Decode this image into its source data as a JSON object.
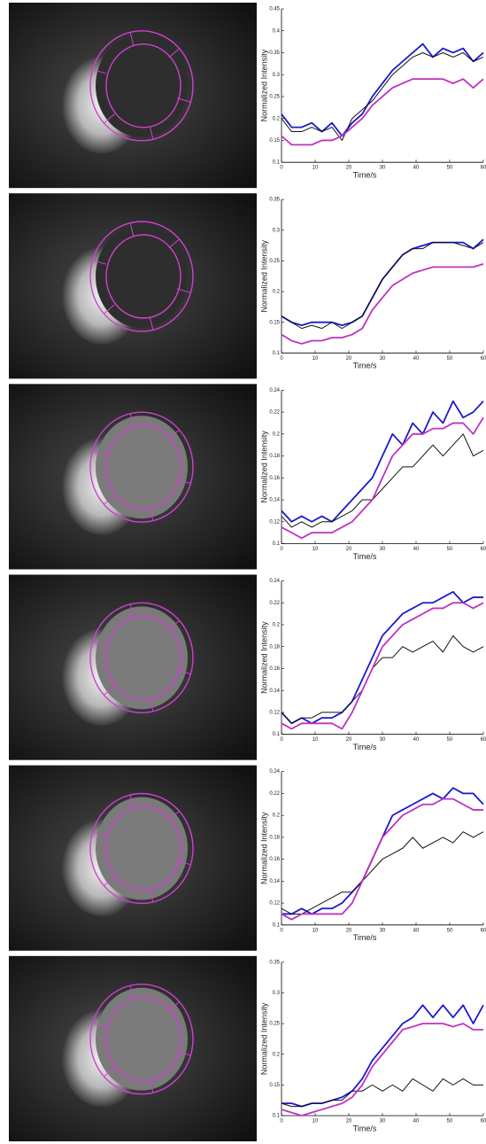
{
  "chart_data": [
    {
      "type": "line",
      "x_label": "Time/s",
      "y_label": "Normalized Intensity",
      "x": [
        0,
        3,
        6,
        9,
        12,
        15,
        18,
        21,
        24,
        27,
        30,
        33,
        36,
        39,
        42,
        45,
        48,
        51,
        54,
        57,
        60
      ],
      "xlim": [
        0,
        60
      ],
      "xticks": [
        0,
        10,
        20,
        30,
        40,
        50,
        60
      ],
      "ylim": [
        0.1,
        0.45
      ],
      "yticks": [
        0.1,
        0.15,
        0.2,
        0.25,
        0.3,
        0.35,
        0.4,
        0.45
      ],
      "series": [
        {
          "color": "#1a1acc",
          "values": [
            0.21,
            0.18,
            0.18,
            0.19,
            0.17,
            0.19,
            0.16,
            0.19,
            0.21,
            0.25,
            0.28,
            0.31,
            0.33,
            0.35,
            0.37,
            0.34,
            0.36,
            0.35,
            0.36,
            0.33,
            0.35
          ]
        },
        {
          "color": "#111111",
          "values": [
            0.2,
            0.17,
            0.17,
            0.18,
            0.17,
            0.18,
            0.15,
            0.2,
            0.22,
            0.24,
            0.27,
            0.3,
            0.32,
            0.34,
            0.35,
            0.34,
            0.35,
            0.34,
            0.35,
            0.33,
            0.34
          ]
        },
        {
          "color": "#c030c0",
          "values": [
            0.16,
            0.14,
            0.14,
            0.14,
            0.15,
            0.15,
            0.16,
            0.18,
            0.2,
            0.23,
            0.25,
            0.27,
            0.28,
            0.29,
            0.29,
            0.29,
            0.29,
            0.28,
            0.29,
            0.27,
            0.29
          ]
        }
      ]
    },
    {
      "type": "line",
      "x_label": "Time/s",
      "y_label": "Normalized Intensity",
      "x": [
        0,
        3,
        6,
        9,
        12,
        15,
        18,
        21,
        24,
        27,
        30,
        33,
        36,
        39,
        42,
        45,
        48,
        51,
        54,
        57,
        60
      ],
      "xlim": [
        0,
        60
      ],
      "xticks": [
        0,
        10,
        20,
        30,
        40,
        50,
        60
      ],
      "ylim": [
        0.1,
        0.35
      ],
      "yticks": [
        0.1,
        0.15,
        0.2,
        0.25,
        0.3,
        0.35
      ],
      "series": [
        {
          "color": "#1a1acc",
          "values": [
            0.16,
            0.15,
            0.145,
            0.15,
            0.15,
            0.15,
            0.145,
            0.15,
            0.16,
            0.19,
            0.22,
            0.24,
            0.26,
            0.27,
            0.275,
            0.28,
            0.28,
            0.28,
            0.28,
            0.27,
            0.285
          ]
        },
        {
          "color": "#111111",
          "values": [
            0.16,
            0.15,
            0.14,
            0.145,
            0.14,
            0.15,
            0.14,
            0.15,
            0.16,
            0.19,
            0.22,
            0.24,
            0.26,
            0.27,
            0.27,
            0.28,
            0.28,
            0.28,
            0.275,
            0.27,
            0.28
          ]
        },
        {
          "color": "#c030c0",
          "values": [
            0.13,
            0.12,
            0.115,
            0.12,
            0.12,
            0.125,
            0.125,
            0.13,
            0.14,
            0.17,
            0.19,
            0.21,
            0.22,
            0.23,
            0.235,
            0.24,
            0.24,
            0.24,
            0.24,
            0.24,
            0.245
          ]
        }
      ]
    },
    {
      "type": "line",
      "x_label": "Time/s",
      "y_label": "Normalized Intensity",
      "x": [
        0,
        3,
        6,
        9,
        12,
        15,
        18,
        21,
        24,
        27,
        30,
        33,
        36,
        39,
        42,
        45,
        48,
        51,
        54,
        57,
        60
      ],
      "xlim": [
        0,
        60
      ],
      "xticks": [
        0,
        10,
        20,
        30,
        40,
        50,
        60
      ],
      "ylim": [
        0.1,
        0.24
      ],
      "yticks": [
        0.1,
        0.12,
        0.14,
        0.16,
        0.18,
        0.2,
        0.22,
        0.24
      ],
      "series": [
        {
          "color": "#1a1acc",
          "values": [
            0.13,
            0.12,
            0.125,
            0.12,
            0.125,
            0.12,
            0.13,
            0.14,
            0.15,
            0.16,
            0.18,
            0.2,
            0.19,
            0.21,
            0.2,
            0.22,
            0.21,
            0.23,
            0.215,
            0.22,
            0.23
          ]
        },
        {
          "color": "#111111",
          "values": [
            0.125,
            0.115,
            0.12,
            0.115,
            0.12,
            0.12,
            0.125,
            0.13,
            0.14,
            0.14,
            0.15,
            0.16,
            0.17,
            0.17,
            0.18,
            0.19,
            0.18,
            0.19,
            0.2,
            0.18,
            0.185
          ]
        },
        {
          "color": "#c030c0",
          "values": [
            0.115,
            0.11,
            0.105,
            0.11,
            0.11,
            0.11,
            0.115,
            0.12,
            0.13,
            0.14,
            0.16,
            0.18,
            0.19,
            0.2,
            0.2,
            0.205,
            0.205,
            0.21,
            0.21,
            0.2,
            0.215
          ]
        }
      ]
    },
    {
      "type": "line",
      "x_label": "Time/s",
      "y_label": "Normalized Intensity",
      "x": [
        0,
        3,
        6,
        9,
        12,
        15,
        18,
        21,
        24,
        27,
        30,
        33,
        36,
        39,
        42,
        45,
        48,
        51,
        54,
        57,
        60
      ],
      "xlim": [
        0,
        60
      ],
      "xticks": [
        0,
        10,
        20,
        30,
        40,
        50,
        60
      ],
      "ylim": [
        0.1,
        0.24
      ],
      "yticks": [
        0.1,
        0.12,
        0.14,
        0.16,
        0.18,
        0.2,
        0.22,
        0.24
      ],
      "series": [
        {
          "color": "#1a1acc",
          "values": [
            0.12,
            0.11,
            0.115,
            0.11,
            0.115,
            0.115,
            0.12,
            0.13,
            0.15,
            0.17,
            0.19,
            0.2,
            0.21,
            0.215,
            0.22,
            0.22,
            0.225,
            0.23,
            0.22,
            0.225,
            0.225
          ]
        },
        {
          "color": "#111111",
          "values": [
            0.12,
            0.11,
            0.115,
            0.115,
            0.12,
            0.12,
            0.12,
            0.13,
            0.14,
            0.16,
            0.17,
            0.17,
            0.18,
            0.175,
            0.18,
            0.185,
            0.175,
            0.19,
            0.18,
            0.175,
            0.18
          ]
        },
        {
          "color": "#c030c0",
          "values": [
            0.11,
            0.105,
            0.11,
            0.11,
            0.11,
            0.11,
            0.105,
            0.12,
            0.14,
            0.16,
            0.18,
            0.19,
            0.2,
            0.205,
            0.21,
            0.215,
            0.215,
            0.22,
            0.22,
            0.215,
            0.22
          ]
        }
      ]
    },
    {
      "type": "line",
      "x_label": "Time/s",
      "y_label": "Normalized Intensity",
      "x": [
        0,
        3,
        6,
        9,
        12,
        15,
        18,
        21,
        24,
        27,
        30,
        33,
        36,
        39,
        42,
        45,
        48,
        51,
        54,
        57,
        60
      ],
      "xlim": [
        0,
        60
      ],
      "xticks": [
        0,
        10,
        20,
        30,
        40,
        50,
        60
      ],
      "ylim": [
        0.1,
        0.24
      ],
      "yticks": [
        0.1,
        0.12,
        0.14,
        0.16,
        0.18,
        0.2,
        0.22,
        0.24
      ],
      "series": [
        {
          "color": "#1a1acc",
          "values": [
            0.11,
            0.11,
            0.115,
            0.11,
            0.115,
            0.115,
            0.12,
            0.13,
            0.14,
            0.16,
            0.18,
            0.2,
            0.205,
            0.21,
            0.215,
            0.22,
            0.215,
            0.225,
            0.22,
            0.22,
            0.21
          ]
        },
        {
          "color": "#111111",
          "values": [
            0.115,
            0.11,
            0.11,
            0.115,
            0.12,
            0.125,
            0.13,
            0.13,
            0.14,
            0.15,
            0.16,
            0.165,
            0.17,
            0.18,
            0.17,
            0.175,
            0.18,
            0.175,
            0.185,
            0.18,
            0.185
          ]
        },
        {
          "color": "#c030c0",
          "values": [
            0.11,
            0.105,
            0.11,
            0.11,
            0.11,
            0.11,
            0.11,
            0.12,
            0.14,
            0.16,
            0.18,
            0.19,
            0.2,
            0.205,
            0.21,
            0.21,
            0.215,
            0.215,
            0.21,
            0.205,
            0.205
          ]
        }
      ]
    },
    {
      "type": "line",
      "x_label": "Time/s",
      "y_label": "Normalized Intensity",
      "x": [
        0,
        3,
        6,
        9,
        12,
        15,
        18,
        21,
        24,
        27,
        30,
        33,
        36,
        39,
        42,
        45,
        48,
        51,
        54,
        57,
        60
      ],
      "xlim": [
        0,
        60
      ],
      "xticks": [
        0,
        10,
        20,
        30,
        40,
        50,
        60
      ],
      "ylim": [
        0.1,
        0.35
      ],
      "yticks": [
        0.1,
        0.15,
        0.2,
        0.25,
        0.3,
        0.35
      ],
      "series": [
        {
          "color": "#1a1acc",
          "values": [
            0.12,
            0.12,
            0.115,
            0.12,
            0.12,
            0.125,
            0.13,
            0.14,
            0.16,
            0.19,
            0.21,
            0.23,
            0.25,
            0.26,
            0.28,
            0.26,
            0.28,
            0.26,
            0.28,
            0.25,
            0.28
          ]
        },
        {
          "color": "#111111",
          "values": [
            0.12,
            0.115,
            0.115,
            0.12,
            0.12,
            0.125,
            0.125,
            0.14,
            0.14,
            0.15,
            0.14,
            0.15,
            0.14,
            0.16,
            0.15,
            0.14,
            0.16,
            0.15,
            0.16,
            0.15,
            0.15
          ]
        },
        {
          "color": "#c030c0",
          "values": [
            0.11,
            0.105,
            0.1,
            0.105,
            0.11,
            0.115,
            0.12,
            0.13,
            0.15,
            0.18,
            0.2,
            0.22,
            0.24,
            0.245,
            0.25,
            0.25,
            0.25,
            0.245,
            0.25,
            0.24,
            0.24
          ]
        }
      ]
    }
  ]
}
